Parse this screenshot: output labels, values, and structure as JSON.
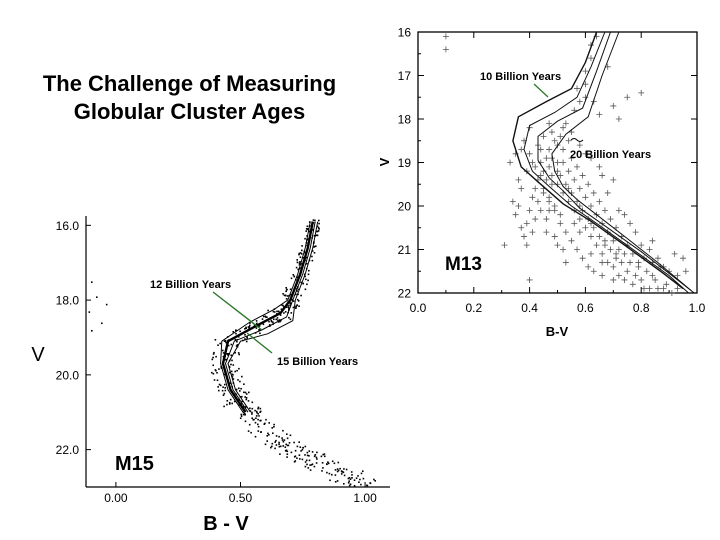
{
  "title_lines": [
    "The Challenge of Measuring",
    "Globular Cluster Ages"
  ],
  "chart_data": [
    {
      "type": "scatter",
      "cluster_label": "M13",
      "xlabel": "B-V",
      "ylabel": "V",
      "xlim": [
        0.0,
        1.0
      ],
      "ylim": [
        16,
        22
      ],
      "y_inverted": true,
      "x_ticks": [
        "0.0",
        "0.2",
        "0.4",
        "0.6",
        "0.8",
        "1.0"
      ],
      "y_ticks": [
        "16",
        "17",
        "18",
        "19",
        "20",
        "21",
        "22"
      ],
      "marker": "plus",
      "annotations": [
        "10 Billion Years",
        "20 Billion Years"
      ],
      "points": [
        [
          0.1,
          16.1
        ],
        [
          0.1,
          16.4
        ],
        [
          0.64,
          16.1
        ],
        [
          0.62,
          16.3
        ],
        [
          0.62,
          16.6
        ],
        [
          0.6,
          16.9
        ],
        [
          0.57,
          17.3
        ],
        [
          0.6,
          17.2
        ],
        [
          0.68,
          16.8
        ],
        [
          0.75,
          17.5
        ],
        [
          0.7,
          17.7
        ],
        [
          0.8,
          17.4
        ],
        [
          0.56,
          17.8
        ],
        [
          0.65,
          17.9
        ],
        [
          0.72,
          18.0
        ],
        [
          0.6,
          17.5
        ],
        [
          0.58,
          17.6
        ],
        [
          0.63,
          17.6
        ],
        [
          0.52,
          18.2
        ],
        [
          0.53,
          18.1
        ],
        [
          0.55,
          18.3
        ],
        [
          0.51,
          18.4
        ],
        [
          0.54,
          18.5
        ],
        [
          0.5,
          18.6
        ],
        [
          0.48,
          18.3
        ],
        [
          0.49,
          18.5
        ],
        [
          0.47,
          18.7
        ],
        [
          0.52,
          18.7
        ],
        [
          0.46,
          18.9
        ],
        [
          0.48,
          18.9
        ],
        [
          0.44,
          19.0
        ],
        [
          0.45,
          19.2
        ],
        [
          0.47,
          19.1
        ],
        [
          0.5,
          19.0
        ],
        [
          0.43,
          19.4
        ],
        [
          0.44,
          19.3
        ],
        [
          0.46,
          19.4
        ],
        [
          0.42,
          19.6
        ],
        [
          0.45,
          19.6
        ],
        [
          0.48,
          19.5
        ],
        [
          0.41,
          19.8
        ],
        [
          0.43,
          19.9
        ],
        [
          0.47,
          19.8
        ],
        [
          0.4,
          20.1
        ],
        [
          0.44,
          20.1
        ],
        [
          0.49,
          20.0
        ],
        [
          0.39,
          20.4
        ],
        [
          0.42,
          20.3
        ],
        [
          0.46,
          20.3
        ],
        [
          0.51,
          20.2
        ],
        [
          0.38,
          20.7
        ],
        [
          0.41,
          20.6
        ],
        [
          0.36,
          20.0
        ],
        [
          0.37,
          19.6
        ],
        [
          0.39,
          19.2
        ],
        [
          0.41,
          19.0
        ],
        [
          0.35,
          18.8
        ],
        [
          0.38,
          18.5
        ],
        [
          0.4,
          18.2
        ],
        [
          0.36,
          19.4
        ],
        [
          0.34,
          19.9
        ],
        [
          0.39,
          20.9
        ],
        [
          0.4,
          21.7
        ],
        [
          0.31,
          20.9
        ],
        [
          0.4,
          18.8
        ],
        [
          0.43,
          18.6
        ],
        [
          0.45,
          18.4
        ],
        [
          0.42,
          19.1
        ],
        [
          0.44,
          18.7
        ],
        [
          0.47,
          18.1
        ],
        [
          0.51,
          19.3
        ],
        [
          0.53,
          19.5
        ],
        [
          0.55,
          19.7
        ],
        [
          0.57,
          19.9
        ],
        [
          0.59,
          20.1
        ],
        [
          0.61,
          20.3
        ],
        [
          0.63,
          20.5
        ],
        [
          0.65,
          20.7
        ],
        [
          0.67,
          20.9
        ],
        [
          0.69,
          21.0
        ],
        [
          0.71,
          21.2
        ],
        [
          0.73,
          21.3
        ],
        [
          0.75,
          21.5
        ],
        [
          0.78,
          21.6
        ],
        [
          0.8,
          21.7
        ],
        [
          0.83,
          21.9
        ],
        [
          0.86,
          21.9
        ],
        [
          0.89,
          21.8
        ],
        [
          0.52,
          19.0
        ],
        [
          0.54,
          19.2
        ],
        [
          0.56,
          19.4
        ],
        [
          0.58,
          19.6
        ],
        [
          0.6,
          19.8
        ],
        [
          0.62,
          20.0
        ],
        [
          0.64,
          20.2
        ],
        [
          0.66,
          20.4
        ],
        [
          0.68,
          20.6
        ],
        [
          0.7,
          20.8
        ],
        [
          0.72,
          21.0
        ],
        [
          0.74,
          21.1
        ],
        [
          0.76,
          21.3
        ],
        [
          0.79,
          21.4
        ],
        [
          0.82,
          21.5
        ],
        [
          0.85,
          21.7
        ],
        [
          0.88,
          21.9
        ],
        [
          0.93,
          21.6
        ],
        [
          0.48,
          19.3
        ],
        [
          0.5,
          19.5
        ],
        [
          0.52,
          19.7
        ],
        [
          0.54,
          19.9
        ],
        [
          0.56,
          20.1
        ],
        [
          0.58,
          20.3
        ],
        [
          0.6,
          20.5
        ],
        [
          0.62,
          20.7
        ],
        [
          0.64,
          20.9
        ],
        [
          0.66,
          21.1
        ],
        [
          0.68,
          21.3
        ],
        [
          0.7,
          21.4
        ],
        [
          0.72,
          21.6
        ],
        [
          0.74,
          21.7
        ],
        [
          0.77,
          21.8
        ],
        [
          0.81,
          21.9
        ],
        [
          0.84,
          21.6
        ],
        [
          0.87,
          21.4
        ],
        [
          0.55,
          18.9
        ],
        [
          0.57,
          19.1
        ],
        [
          0.59,
          19.3
        ],
        [
          0.61,
          19.5
        ],
        [
          0.63,
          19.7
        ],
        [
          0.65,
          19.9
        ],
        [
          0.67,
          20.1
        ],
        [
          0.69,
          20.3
        ],
        [
          0.71,
          20.5
        ],
        [
          0.73,
          20.7
        ],
        [
          0.75,
          20.9
        ],
        [
          0.77,
          21.1
        ],
        [
          0.79,
          21.3
        ],
        [
          0.81,
          21.2
        ],
        [
          0.83,
          21.0
        ],
        [
          0.86,
          21.2
        ],
        [
          0.9,
          21.5
        ],
        [
          0.92,
          21.1
        ],
        [
          0.45,
          19.7
        ],
        [
          0.47,
          19.9
        ],
        [
          0.49,
          20.1
        ],
        [
          0.51,
          20.4
        ],
        [
          0.53,
          20.6
        ],
        [
          0.55,
          20.8
        ],
        [
          0.57,
          21.0
        ],
        [
          0.59,
          21.2
        ],
        [
          0.61,
          21.4
        ],
        [
          0.63,
          21.5
        ],
        [
          0.66,
          21.6
        ],
        [
          0.7,
          21.7
        ],
        [
          0.56,
          20.4
        ],
        [
          0.58,
          20.6
        ],
        [
          0.62,
          21.1
        ],
        [
          0.66,
          21.3
        ],
        [
          0.68,
          19.7
        ],
        [
          0.72,
          20.1
        ],
        [
          0.76,
          20.4
        ],
        [
          0.7,
          19.4
        ],
        [
          0.65,
          19.1
        ],
        [
          0.6,
          18.8
        ],
        [
          0.74,
          20.2
        ],
        [
          0.78,
          20.6
        ],
        [
          0.84,
          21.3
        ],
        [
          0.58,
          18.6
        ],
        [
          0.62,
          18.9
        ],
        [
          0.66,
          19.3
        ],
        [
          0.53,
          21.3
        ],
        [
          0.5,
          20.9
        ],
        [
          0.46,
          20.6
        ],
        [
          0.47,
          20.1
        ],
        [
          0.49,
          20.7
        ],
        [
          0.52,
          21.0
        ],
        [
          0.35,
          20.2
        ],
        [
          0.37,
          20.5
        ],
        [
          0.33,
          19.0
        ],
        [
          0.37,
          18.7
        ],
        [
          0.5,
          19.2
        ],
        [
          0.54,
          19.6
        ],
        [
          0.58,
          20.0
        ],
        [
          0.62,
          20.4
        ],
        [
          0.67,
          20.8
        ],
        [
          0.71,
          21.1
        ],
        [
          0.95,
          21.2
        ],
        [
          0.93,
          21.9
        ],
        [
          0.96,
          21.5
        ],
        [
          0.88,
          21.4
        ],
        [
          0.84,
          20.8
        ],
        [
          0.8,
          20.9
        ],
        [
          0.91,
          22.0
        ]
      ]
    },
    {
      "type": "scatter",
      "cluster_label": "M15",
      "xlabel": "B - V",
      "ylabel": "V",
      "xlim": [
        -0.12,
        1.1
      ],
      "ylim": [
        15.75,
        23.0
      ],
      "y_inverted": true,
      "x_ticks": [
        "0.00",
        "0.50",
        "1.00"
      ],
      "y_ticks": [
        "16.0",
        "18.0",
        "20.0",
        "22.0"
      ],
      "marker": "dot",
      "annotations": [
        "12 Billion Years",
        "15 Billion Years"
      ]
    }
  ]
}
